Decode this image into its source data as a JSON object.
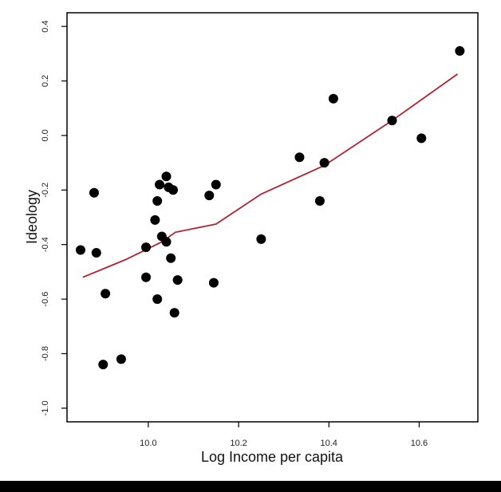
{
  "chart_data": {
    "type": "scatter",
    "xlabel": "Log Income per capita",
    "ylabel": "Ideology",
    "xlim": [
      9.82,
      10.73
    ],
    "ylim": [
      -1.05,
      0.45
    ],
    "x_ticks": [
      10.0,
      10.2,
      10.4,
      10.6
    ],
    "x_tick_labels": [
      "10.0",
      "10.2",
      "10.4",
      "10.6"
    ],
    "y_ticks": [
      -1.0,
      -0.8,
      -0.6,
      -0.4,
      -0.2,
      0.0,
      0.2,
      0.4
    ],
    "y_tick_labels": [
      "-1.0",
      "-0.8",
      "-0.6",
      "-0.4",
      "-0.2",
      "0.0",
      "0.2",
      "0.4"
    ],
    "grid": false,
    "colors": {
      "points": "#000000",
      "trend": "#b22234",
      "axis": "#000000"
    },
    "points": [
      {
        "x": 9.85,
        "y": -0.42
      },
      {
        "x": 9.88,
        "y": -0.21
      },
      {
        "x": 9.885,
        "y": -0.43
      },
      {
        "x": 9.9,
        "y": -0.84
      },
      {
        "x": 9.905,
        "y": -0.58
      },
      {
        "x": 9.94,
        "y": -0.82
      },
      {
        "x": 9.995,
        "y": -0.41
      },
      {
        "x": 9.995,
        "y": -0.52
      },
      {
        "x": 10.015,
        "y": -0.31
      },
      {
        "x": 10.02,
        "y": -0.24
      },
      {
        "x": 10.02,
        "y": -0.6
      },
      {
        "x": 10.025,
        "y": -0.18
      },
      {
        "x": 10.03,
        "y": -0.37
      },
      {
        "x": 10.04,
        "y": -0.39
      },
      {
        "x": 10.04,
        "y": -0.15
      },
      {
        "x": 10.045,
        "y": -0.19
      },
      {
        "x": 10.05,
        "y": -0.45
      },
      {
        "x": 10.055,
        "y": -0.2
      },
      {
        "x": 10.058,
        "y": -0.65
      },
      {
        "x": 10.065,
        "y": -0.53
      },
      {
        "x": 10.135,
        "y": -0.22
      },
      {
        "x": 10.145,
        "y": -0.54
      },
      {
        "x": 10.15,
        "y": -0.18
      },
      {
        "x": 10.25,
        "y": -0.38
      },
      {
        "x": 10.335,
        "y": -0.08
      },
      {
        "x": 10.38,
        "y": -0.24
      },
      {
        "x": 10.39,
        "y": -0.1
      },
      {
        "x": 10.41,
        "y": 0.135
      },
      {
        "x": 10.54,
        "y": 0.055
      },
      {
        "x": 10.605,
        "y": -0.01
      },
      {
        "x": 10.69,
        "y": 0.31
      }
    ],
    "trend_line": [
      {
        "x": 9.855,
        "y": -0.52
      },
      {
        "x": 9.95,
        "y": -0.455
      },
      {
        "x": 10.03,
        "y": -0.39
      },
      {
        "x": 10.06,
        "y": -0.355
      },
      {
        "x": 10.15,
        "y": -0.325
      },
      {
        "x": 10.25,
        "y": -0.215
      },
      {
        "x": 10.39,
        "y": -0.11
      },
      {
        "x": 10.54,
        "y": 0.055
      },
      {
        "x": 10.685,
        "y": 0.225
      }
    ]
  }
}
